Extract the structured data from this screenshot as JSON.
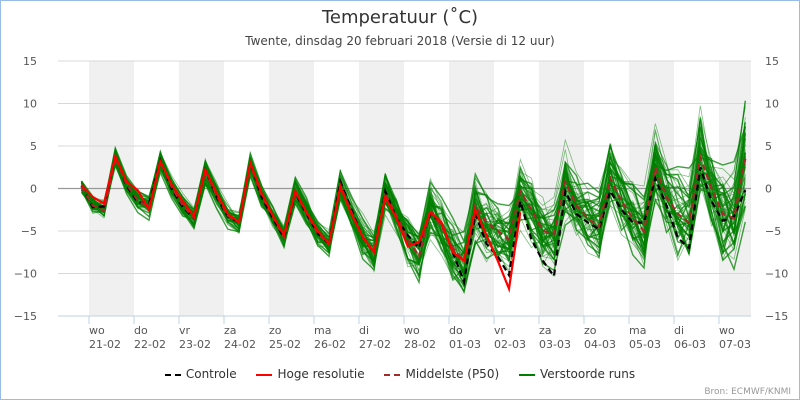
{
  "chart_data": {
    "type": "line",
    "title": "Temperatuur (˚C)",
    "subtitle": "Twente, dinsdag 20 februari 2018 (Versie di 12 uur)",
    "ylabel": "",
    "ylim": [
      -15,
      15
    ],
    "yticks": [
      15,
      10,
      5,
      0,
      -5,
      -10,
      -15
    ],
    "x_step_hours": 6,
    "x_start_hours_from_first_tick": -4,
    "days": [
      {
        "day": "wo",
        "date": "21-02"
      },
      {
        "day": "do",
        "date": "22-02"
      },
      {
        "day": "vr",
        "date": "23-02"
      },
      {
        "day": "za",
        "date": "24-02"
      },
      {
        "day": "zo",
        "date": "25-02"
      },
      {
        "day": "ma",
        "date": "26-02"
      },
      {
        "day": "di",
        "date": "27-02"
      },
      {
        "day": "wo",
        "date": "28-02"
      },
      {
        "day": "do",
        "date": "01-03"
      },
      {
        "day": "vr",
        "date": "02-03"
      },
      {
        "day": "za",
        "date": "03-03"
      },
      {
        "day": "zo",
        "date": "04-03"
      },
      {
        "day": "ma",
        "date": "05-03"
      },
      {
        "day": "di",
        "date": "06-03"
      },
      {
        "day": "wo",
        "date": "07-03"
      }
    ],
    "series": [
      {
        "name": "Controle",
        "color": "#000000",
        "dash": true,
        "values": [
          0.3,
          -2.2,
          -2.1,
          3.8,
          0.3,
          -1.6,
          -1.8,
          3.3,
          0,
          -2.2,
          -3.5,
          2.2,
          -1,
          -3.3,
          -4,
          3,
          -1,
          -3.5,
          -5.8,
          -0.5,
          -3,
          -5.3,
          -6.5,
          0.8,
          -2.5,
          -5.8,
          -7.5,
          -0.3,
          -3.5,
          -5.5,
          -7,
          -3,
          -4,
          -7.5,
          -11,
          -3,
          -6.5,
          -8,
          -10.2,
          -1.5,
          -6,
          -8.5,
          -10.3,
          -0.3,
          -3,
          -4,
          -4.8,
          -0.3,
          -2.5,
          -4,
          -4,
          1.2,
          -2,
          -5.8,
          -7,
          2.5,
          -1.5,
          -3.8,
          -3.3,
          -0.2
        ]
      },
      {
        "name": "Hoge resolutie",
        "color": "#ff0000",
        "dash": false,
        "values": [
          0.4,
          -1,
          -1.8,
          3.8,
          0.8,
          -0.2,
          -2.5,
          3.2,
          0.5,
          -1.5,
          -3.3,
          2.2,
          -0.5,
          -3,
          -4,
          3,
          -0.5,
          -3.2,
          -5.5,
          -0.3,
          -2.8,
          -5,
          -6.5,
          0.2,
          -3,
          -5.7,
          -7.5,
          -1,
          -3.5,
          -6.8,
          -6.3,
          -2.8,
          -4,
          -7.5,
          -8.5,
          -2.5,
          -5.5,
          -8.5,
          -11.8,
          -2.8
        ]
      },
      {
        "name": "Middelste (P50)",
        "color": "#a52a2a",
        "dash": true,
        "values": [
          0.2,
          -2,
          -2.6,
          3.6,
          0.5,
          -1.4,
          -2.2,
          3.2,
          0.2,
          -2,
          -3.5,
          2,
          -0.8,
          -3.2,
          -4,
          2.8,
          -0.8,
          -3.3,
          -5.7,
          -0.4,
          -2.9,
          -5.3,
          -6.6,
          0.4,
          -2.8,
          -5.8,
          -7.5,
          -0.6,
          -3.2,
          -6,
          -8,
          -2.5,
          -4.5,
          -7,
          -8.5,
          -2,
          -4,
          -5,
          -6,
          -0.3,
          -2.5,
          -5,
          -5.3,
          0.8,
          -2,
          -3.5,
          -4.5,
          1.2,
          -1.5,
          -3.5,
          -5,
          2.5,
          -1,
          -3,
          -4,
          3.7,
          0,
          -3,
          -3.5,
          3.5
        ]
      },
      {
        "name": "Verstoorde runs",
        "color": "#008000",
        "members": 50,
        "spread_by_day": [
          0.9,
          1,
          1.1,
          1.1,
          1.2,
          1.3,
          2,
          2.8,
          3.2,
          3.3,
          3.4,
          3.4,
          3.8,
          4.5,
          5
        ]
      }
    ],
    "legend_position": "bottom-center",
    "source": "Bron: ECMWF/KNMI"
  }
}
